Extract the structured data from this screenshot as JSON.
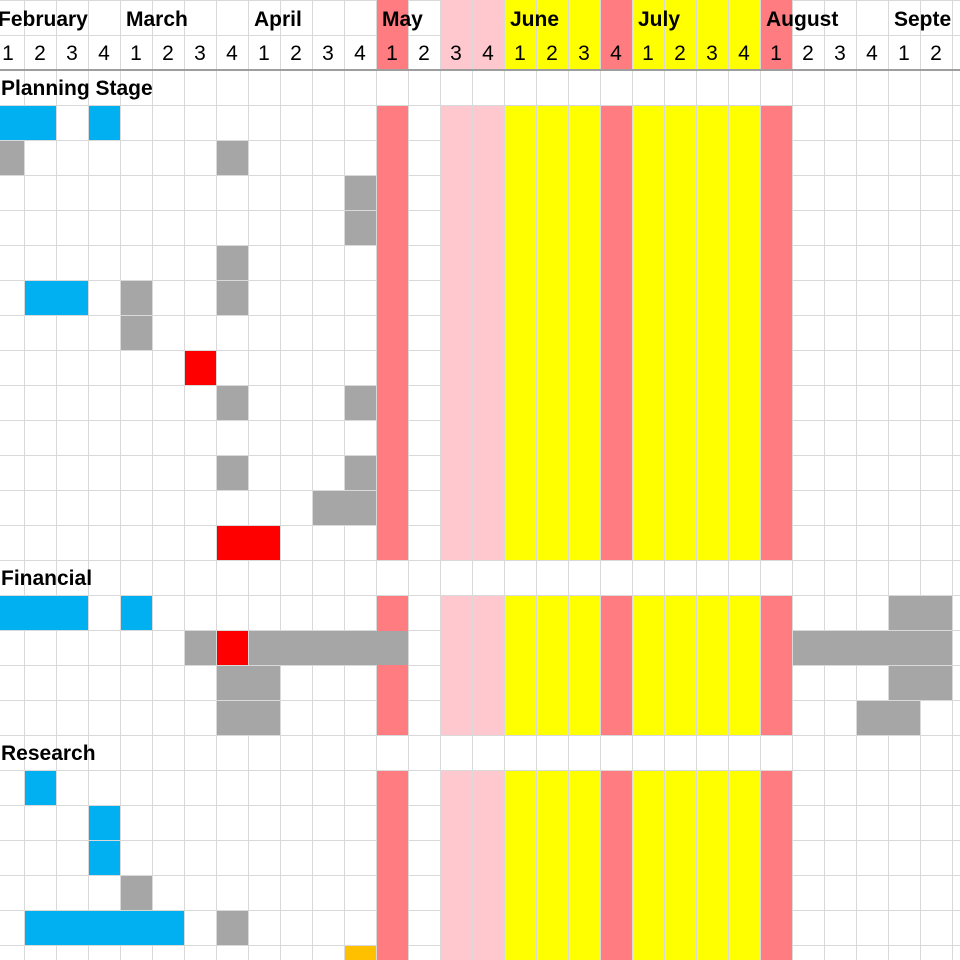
{
  "colors": {
    "blue": "#00b0f0",
    "gray": "#a6a6a6",
    "red": "#ff0000",
    "salmon": "#ff7c80",
    "pink": "#ffc7ce",
    "yellow": "#ffff00",
    "orange": "#ffc000"
  },
  "months": [
    {
      "name": "February",
      "start_col": 0
    },
    {
      "name": "March",
      "start_col": 4
    },
    {
      "name": "April",
      "start_col": 8
    },
    {
      "name": "May",
      "start_col": 12
    },
    {
      "name": "June",
      "start_col": 16
    },
    {
      "name": "July",
      "start_col": 20
    },
    {
      "name": "August",
      "start_col": 24
    },
    {
      "name": "Septe",
      "start_col": 28
    }
  ],
  "weeks": [
    "1",
    "2",
    "3",
    "4",
    "1",
    "2",
    "3",
    "4",
    "1",
    "2",
    "3",
    "4",
    "1",
    "2",
    "3",
    "4",
    "1",
    "2",
    "3",
    "4",
    "1",
    "2",
    "3",
    "4",
    "1",
    "2",
    "3",
    "4",
    "1",
    "2"
  ],
  "sections": [
    {
      "label": "Planning Stage",
      "row": 2
    },
    {
      "label": "Financial",
      "row": 16
    },
    {
      "label": "Research",
      "row": 21
    }
  ],
  "column_highlights": [
    {
      "col": 12,
      "color": "salmon"
    },
    {
      "col": 14,
      "color": "pink"
    },
    {
      "col": 15,
      "color": "pink"
    },
    {
      "col": 16,
      "color": "yellow"
    },
    {
      "col": 17,
      "color": "yellow"
    },
    {
      "col": 18,
      "color": "yellow"
    },
    {
      "col": 19,
      "color": "salmon"
    },
    {
      "col": 20,
      "color": "yellow"
    },
    {
      "col": 21,
      "color": "yellow"
    },
    {
      "col": 22,
      "color": "yellow"
    },
    {
      "col": 23,
      "color": "yellow"
    },
    {
      "col": 24,
      "color": "salmon"
    }
  ],
  "header_highlights": [
    {
      "col": 12,
      "color": "salmon"
    },
    {
      "col": 14,
      "color": "pink"
    },
    {
      "col": 15,
      "color": "pink"
    },
    {
      "col": 16,
      "color": "yellow"
    },
    {
      "col": 17,
      "color": "yellow"
    },
    {
      "col": 18,
      "color": "yellow"
    },
    {
      "col": 19,
      "color": "salmon"
    },
    {
      "col": 20,
      "color": "yellow"
    },
    {
      "col": 21,
      "color": "yellow"
    },
    {
      "col": 22,
      "color": "yellow"
    },
    {
      "col": 23,
      "color": "yellow"
    },
    {
      "col": 24,
      "color": "salmon"
    }
  ],
  "blank_rows": [
    2,
    16,
    21
  ],
  "bars": [
    {
      "row": 3,
      "start": 0,
      "end": 1,
      "color": "blue"
    },
    {
      "row": 3,
      "start": 3,
      "end": 3,
      "color": "blue"
    },
    {
      "row": 4,
      "start": 0,
      "end": 0,
      "color": "gray"
    },
    {
      "row": 4,
      "start": 7,
      "end": 7,
      "color": "gray"
    },
    {
      "row": 5,
      "start": 11,
      "end": 11,
      "color": "gray"
    },
    {
      "row": 6,
      "start": 11,
      "end": 11,
      "color": "gray"
    },
    {
      "row": 7,
      "start": 7,
      "end": 7,
      "color": "gray"
    },
    {
      "row": 8,
      "start": 1,
      "end": 2,
      "color": "blue"
    },
    {
      "row": 8,
      "start": 4,
      "end": 4,
      "color": "gray"
    },
    {
      "row": 8,
      "start": 7,
      "end": 7,
      "color": "gray"
    },
    {
      "row": 9,
      "start": 4,
      "end": 4,
      "color": "gray"
    },
    {
      "row": 10,
      "start": 6,
      "end": 6,
      "color": "red"
    },
    {
      "row": 11,
      "start": 7,
      "end": 7,
      "color": "gray"
    },
    {
      "row": 11,
      "start": 11,
      "end": 11,
      "color": "gray"
    },
    {
      "row": 13,
      "start": 7,
      "end": 7,
      "color": "gray"
    },
    {
      "row": 13,
      "start": 11,
      "end": 11,
      "color": "gray"
    },
    {
      "row": 14,
      "start": 10,
      "end": 11,
      "color": "gray"
    },
    {
      "row": 15,
      "start": 7,
      "end": 8,
      "color": "red"
    },
    {
      "row": 17,
      "start": 0,
      "end": 2,
      "color": "blue"
    },
    {
      "row": 17,
      "start": 4,
      "end": 4,
      "color": "blue"
    },
    {
      "row": 17,
      "start": 28,
      "end": 29,
      "color": "gray"
    },
    {
      "row": 18,
      "start": 6,
      "end": 6,
      "color": "gray"
    },
    {
      "row": 18,
      "start": 7,
      "end": 7,
      "color": "red"
    },
    {
      "row": 18,
      "start": 8,
      "end": 12,
      "color": "gray"
    },
    {
      "row": 18,
      "start": 25,
      "end": 29,
      "color": "gray"
    },
    {
      "row": 19,
      "start": 7,
      "end": 8,
      "color": "gray"
    },
    {
      "row": 19,
      "start": 28,
      "end": 29,
      "color": "gray"
    },
    {
      "row": 20,
      "start": 7,
      "end": 8,
      "color": "gray"
    },
    {
      "row": 20,
      "start": 27,
      "end": 28,
      "color": "gray"
    },
    {
      "row": 22,
      "start": 1,
      "end": 1,
      "color": "blue"
    },
    {
      "row": 23,
      "start": 3,
      "end": 3,
      "color": "blue"
    },
    {
      "row": 24,
      "start": 3,
      "end": 3,
      "color": "blue"
    },
    {
      "row": 25,
      "start": 4,
      "end": 4,
      "color": "gray"
    },
    {
      "row": 26,
      "start": 1,
      "end": 5,
      "color": "blue"
    },
    {
      "row": 26,
      "start": 7,
      "end": 7,
      "color": "gray"
    },
    {
      "row": 27,
      "start": 11,
      "end": 11,
      "color": "orange"
    }
  ]
}
